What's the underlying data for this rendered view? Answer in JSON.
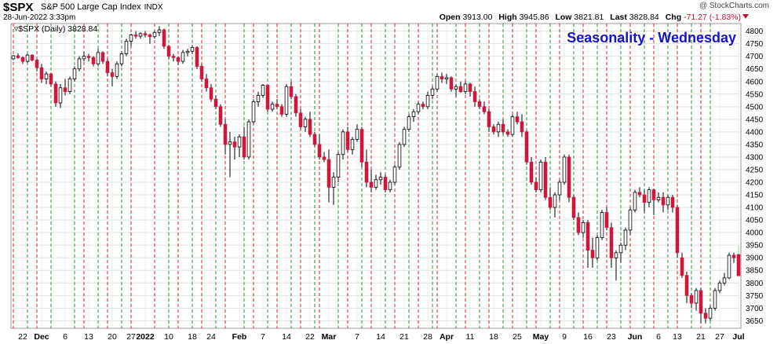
{
  "header": {
    "symbol": "$SPX",
    "name": "S&P 500 Large Cap Index",
    "exchange": "INDX",
    "date": "28-Jun-2022 3:33pm",
    "copyright": "@ StockCharts.com",
    "open_label": "Open",
    "open": "3913.00",
    "high_label": "High",
    "high": "3945.86",
    "low_label": "Low",
    "low": "3821.81",
    "last_label": "Last",
    "last": "3828.84",
    "chg_label": "Chg",
    "chg": "-71.27 (-1.83%)"
  },
  "colors": {
    "up": "#ffffff",
    "down": "#d4143a",
    "black": "#000000",
    "wed_line": "#2e8b2e",
    "fri_line": "#d42020",
    "title": "#1515c8",
    "last_bar": "#98e070"
  },
  "chart_data": {
    "type": "candlestick",
    "title": "Seasonality - Wednesday",
    "legend": "$SPX (Daily) 3828.84",
    "y_range": [
      3620,
      4830
    ],
    "y_ticks": [
      3650,
      3700,
      3750,
      3800,
      3850,
      3900,
      3950,
      4000,
      4050,
      4100,
      4150,
      4200,
      4250,
      4300,
      4350,
      4400,
      4450,
      4500,
      4550,
      4600,
      4650,
      4700,
      4750,
      4800
    ],
    "x_labels": [
      "22",
      "Dec",
      "6",
      "13",
      "20",
      "27",
      "2022",
      "10",
      "18",
      "24",
      "Feb",
      "7",
      "14",
      "22",
      "Mar",
      "7",
      "14",
      "21",
      "28",
      "Apr",
      "11",
      "18",
      "25",
      "May",
      "9",
      "16",
      "23",
      "Jun",
      "6",
      "13",
      "21",
      "27",
      "Jul"
    ],
    "x_label_index": [
      2,
      6,
      11,
      16,
      21,
      25,
      28,
      33,
      38,
      42,
      48,
      53,
      58,
      63,
      67,
      73,
      78,
      83,
      88,
      92,
      97,
      102,
      107,
      112,
      117,
      122,
      127,
      132,
      137,
      141,
      146,
      150,
      154
    ],
    "wednesday_lines": [
      3,
      8,
      13,
      18,
      23,
      33,
      38,
      43,
      49,
      54,
      59,
      64,
      69,
      74,
      79,
      84,
      89,
      94,
      99,
      104,
      109,
      114,
      119,
      124,
      129,
      134,
      139,
      144,
      148
    ],
    "friday_lines": [
      0,
      5,
      15,
      20,
      25,
      30,
      35,
      40,
      45,
      51,
      56,
      61,
      65,
      71,
      76,
      81,
      86,
      90,
      96,
      101,
      106,
      111,
      116,
      121,
      126,
      131,
      136,
      141,
      146
    ],
    "candles": [
      [
        4690,
        4705,
        4685,
        4702
      ],
      [
        4702,
        4712,
        4690,
        4695
      ],
      [
        4695,
        4700,
        4670,
        4680
      ],
      [
        4680,
        4710,
        4675,
        4705
      ],
      [
        4705,
        4708,
        4680,
        4685
      ],
      [
        4685,
        4690,
        4640,
        4655
      ],
      [
        4655,
        4670,
        4595,
        4610
      ],
      [
        4610,
        4640,
        4590,
        4630
      ],
      [
        4630,
        4635,
        4580,
        4590
      ],
      [
        4590,
        4600,
        4500,
        4515
      ],
      [
        4515,
        4590,
        4495,
        4575
      ],
      [
        4575,
        4610,
        4545,
        4560
      ],
      [
        4560,
        4620,
        4550,
        4610
      ],
      [
        4610,
        4660,
        4600,
        4650
      ],
      [
        4650,
        4700,
        4640,
        4690
      ],
      [
        4690,
        4720,
        4680,
        4700
      ],
      [
        4700,
        4710,
        4680,
        4695
      ],
      [
        4695,
        4700,
        4660,
        4670
      ],
      [
        4670,
        4730,
        4660,
        4715
      ],
      [
        4715,
        4720,
        4670,
        4680
      ],
      [
        4680,
        4690,
        4620,
        4635
      ],
      [
        4635,
        4650,
        4580,
        4620
      ],
      [
        4620,
        4680,
        4610,
        4670
      ],
      [
        4670,
        4720,
        4660,
        4710
      ],
      [
        4710,
        4770,
        4700,
        4760
      ],
      [
        4760,
        4790,
        4740,
        4785
      ],
      [
        4785,
        4800,
        4770,
        4780
      ],
      [
        4780,
        4795,
        4770,
        4790
      ],
      [
        4790,
        4800,
        4775,
        4785
      ],
      [
        4785,
        4790,
        4750,
        4778
      ],
      [
        4778,
        4800,
        4770,
        4795
      ],
      [
        4795,
        4820,
        4780,
        4805
      ],
      [
        4805,
        4810,
        4730,
        4740
      ],
      [
        4740,
        4745,
        4690,
        4700
      ],
      [
        4700,
        4710,
        4680,
        4695
      ],
      [
        4695,
        4700,
        4665,
        4680
      ],
      [
        4680,
        4725,
        4670,
        4715
      ],
      [
        4715,
        4730,
        4700,
        4720
      ],
      [
        4720,
        4745,
        4710,
        4735
      ],
      [
        4735,
        4740,
        4650,
        4660
      ],
      [
        4660,
        4670,
        4600,
        4610
      ],
      [
        4610,
        4630,
        4560,
        4575
      ],
      [
        4575,
        4590,
        4520,
        4530
      ],
      [
        4530,
        4545,
        4490,
        4500
      ],
      [
        4500,
        4510,
        4420,
        4430
      ],
      [
        4430,
        4450,
        4310,
        4350
      ],
      [
        4350,
        4400,
        4220,
        4360
      ],
      [
        4360,
        4380,
        4290,
        4340
      ],
      [
        4340,
        4390,
        4300,
        4380
      ],
      [
        4380,
        4420,
        4290,
        4300
      ],
      [
        4300,
        4450,
        4290,
        4440
      ],
      [
        4440,
        4530,
        4430,
        4520
      ],
      [
        4520,
        4560,
        4500,
        4545
      ],
      [
        4545,
        4590,
        4535,
        4585
      ],
      [
        4585,
        4590,
        4480,
        4490
      ],
      [
        4490,
        4520,
        4480,
        4510
      ],
      [
        4510,
        4530,
        4490,
        4500
      ],
      [
        4500,
        4510,
        4460,
        4470
      ],
      [
        4470,
        4590,
        4460,
        4580
      ],
      [
        4580,
        4600,
        4530,
        4540
      ],
      [
        4540,
        4550,
        4460,
        4475
      ],
      [
        4475,
        4490,
        4410,
        4420
      ],
      [
        4420,
        4460,
        4400,
        4450
      ],
      [
        4450,
        4480,
        4380,
        4390
      ],
      [
        4390,
        4400,
        4340,
        4350
      ],
      [
        4350,
        4390,
        4290,
        4300
      ],
      [
        4300,
        4320,
        4280,
        4290
      ],
      [
        4290,
        4330,
        4120,
        4180
      ],
      [
        4180,
        4240,
        4110,
        4220
      ],
      [
        4220,
        4320,
        4200,
        4310
      ],
      [
        4310,
        4410,
        4290,
        4400
      ],
      [
        4400,
        4420,
        4320,
        4330
      ],
      [
        4330,
        4380,
        4310,
        4370
      ],
      [
        4370,
        4430,
        4360,
        4410
      ],
      [
        4410,
        4420,
        4260,
        4280
      ],
      [
        4280,
        4330,
        4180,
        4200
      ],
      [
        4200,
        4250,
        4160,
        4180
      ],
      [
        4180,
        4230,
        4170,
        4210
      ],
      [
        4210,
        4240,
        4190,
        4220
      ],
      [
        4220,
        4230,
        4160,
        4170
      ],
      [
        4170,
        4210,
        4160,
        4200
      ],
      [
        4200,
        4270,
        4190,
        4260
      ],
      [
        4260,
        4360,
        4250,
        4350
      ],
      [
        4350,
        4420,
        4340,
        4410
      ],
      [
        4410,
        4470,
        4400,
        4460
      ],
      [
        4460,
        4490,
        4440,
        4480
      ],
      [
        4480,
        4520,
        4470,
        4510
      ],
      [
        4510,
        4520,
        4490,
        4500
      ],
      [
        4500,
        4560,
        4490,
        4545
      ],
      [
        4545,
        4580,
        4530,
        4570
      ],
      [
        4570,
        4630,
        4560,
        4620
      ],
      [
        4620,
        4635,
        4595,
        4610
      ],
      [
        4610,
        4630,
        4590,
        4615
      ],
      [
        4615,
        4620,
        4560,
        4570
      ],
      [
        4570,
        4590,
        4540,
        4580
      ],
      [
        4580,
        4600,
        4555,
        4560
      ],
      [
        4560,
        4600,
        4550,
        4590
      ],
      [
        4590,
        4595,
        4540,
        4560
      ],
      [
        4560,
        4580,
        4500,
        4520
      ],
      [
        4520,
        4530,
        4490,
        4500
      ],
      [
        4500,
        4520,
        4470,
        4480
      ],
      [
        4480,
        4490,
        4400,
        4420
      ],
      [
        4420,
        4430,
        4390,
        4400
      ],
      [
        4400,
        4440,
        4380,
        4430
      ],
      [
        4430,
        4450,
        4390,
        4400
      ],
      [
        4400,
        4410,
        4380,
        4390
      ],
      [
        4390,
        4470,
        4380,
        4460
      ],
      [
        4460,
        4480,
        4430,
        4440
      ],
      [
        4440,
        4470,
        4380,
        4400
      ],
      [
        4400,
        4405,
        4270,
        4280
      ],
      [
        4280,
        4300,
        4190,
        4200
      ],
      [
        4200,
        4220,
        4160,
        4170
      ],
      [
        4170,
        4290,
        4160,
        4280
      ],
      [
        4280,
        4300,
        4130,
        4140
      ],
      [
        4140,
        4180,
        4090,
        4100
      ],
      [
        4100,
        4160,
        4060,
        4150
      ],
      [
        4150,
        4210,
        4130,
        4200
      ],
      [
        4200,
        4310,
        4190,
        4300
      ],
      [
        4300,
        4310,
        4120,
        4140
      ],
      [
        4140,
        4150,
        4050,
        4060
      ],
      [
        4060,
        4080,
        3990,
        4000
      ],
      [
        4000,
        4050,
        3980,
        4040
      ],
      [
        4040,
        4050,
        3860,
        3930
      ],
      [
        3930,
        3980,
        3860,
        3900
      ],
      [
        3900,
        3990,
        3890,
        3980
      ],
      [
        3980,
        4090,
        3970,
        4080
      ],
      [
        4080,
        4100,
        4010,
        4020
      ],
      [
        4020,
        4040,
        3860,
        3900
      ],
      [
        3900,
        3930,
        3810,
        3920
      ],
      [
        3920,
        3960,
        3880,
        3950
      ],
      [
        3950,
        4020,
        3930,
        4010
      ],
      [
        4010,
        4100,
        3990,
        4090
      ],
      [
        4090,
        4170,
        4080,
        4160
      ],
      [
        4160,
        4180,
        4140,
        4150
      ],
      [
        4150,
        4170,
        4080,
        4120
      ],
      [
        4120,
        4180,
        4100,
        4170
      ],
      [
        4170,
        4175,
        4070,
        4130
      ],
      [
        4130,
        4160,
        4120,
        4140
      ],
      [
        4140,
        4160,
        4080,
        4110
      ],
      [
        4110,
        4150,
        4090,
        4140
      ],
      [
        4140,
        4150,
        4080,
        4100
      ],
      [
        4100,
        4110,
        3900,
        3920
      ],
      [
        3900,
        3920,
        3820,
        3830
      ],
      [
        3830,
        3845,
        3720,
        3750
      ],
      [
        3750,
        3760,
        3700,
        3720
      ],
      [
        3720,
        3780,
        3690,
        3770
      ],
      [
        3770,
        3780,
        3640,
        3680
      ],
      [
        3680,
        3700,
        3640,
        3660
      ],
      [
        3660,
        3710,
        3650,
        3700
      ],
      [
        3700,
        3780,
        3690,
        3770
      ],
      [
        3770,
        3810,
        3760,
        3800
      ],
      [
        3800,
        3840,
        3790,
        3820
      ],
      [
        3820,
        3920,
        3815,
        3910
      ],
      [
        3910,
        3920,
        3880,
        3900
      ],
      [
        3913,
        3945.86,
        3821.81,
        3828.84
      ]
    ]
  }
}
